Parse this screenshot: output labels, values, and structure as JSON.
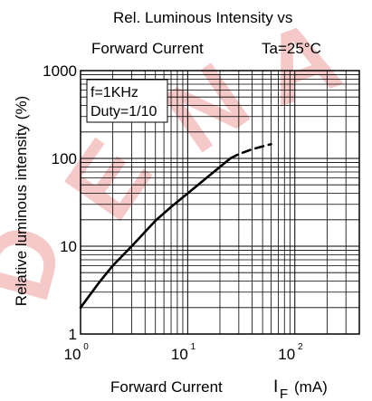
{
  "chart_data": {
    "type": "line",
    "title_line1": "Rel. Luminous Intensity vs",
    "title_line2": "Forward Current",
    "condition": "Ta=25°C",
    "annotation_lines": [
      "f=1KHz",
      "Duty=1/10"
    ],
    "ylabel": "Relative luminous intensity   (%)",
    "xlabel": "Forward Current",
    "xunit_symbol": "I",
    "xunit_subscript": "F",
    "xunit": "(mA)",
    "x_scale": "log",
    "y_scale": "log",
    "xlim": [
      1,
      400
    ],
    "ylim": [
      1,
      1000
    ],
    "y_ticks": [
      {
        "value": 1,
        "label": "1"
      },
      {
        "value": 10,
        "label": "10"
      },
      {
        "value": 100,
        "label": "100"
      },
      {
        "value": 1000,
        "label": "1000"
      }
    ],
    "x_ticks": [
      {
        "value": 1,
        "base": "10",
        "exp": "0"
      },
      {
        "value": 10,
        "base": "10",
        "exp": "1"
      },
      {
        "value": 100,
        "base": "10",
        "exp": "2"
      }
    ],
    "grid": true,
    "watermark": "DENA",
    "series": [
      {
        "style": "solid",
        "x": [
          1,
          1.5,
          2,
          3,
          5,
          7,
          10,
          15,
          20,
          25
        ],
        "y": [
          2,
          3.9,
          6,
          10,
          19.5,
          28,
          40,
          60,
          80,
          100
        ]
      },
      {
        "style": "dashed",
        "x": [
          25,
          30,
          40,
          50,
          60
        ],
        "y": [
          100,
          112,
          127,
          137,
          145
        ]
      }
    ]
  }
}
